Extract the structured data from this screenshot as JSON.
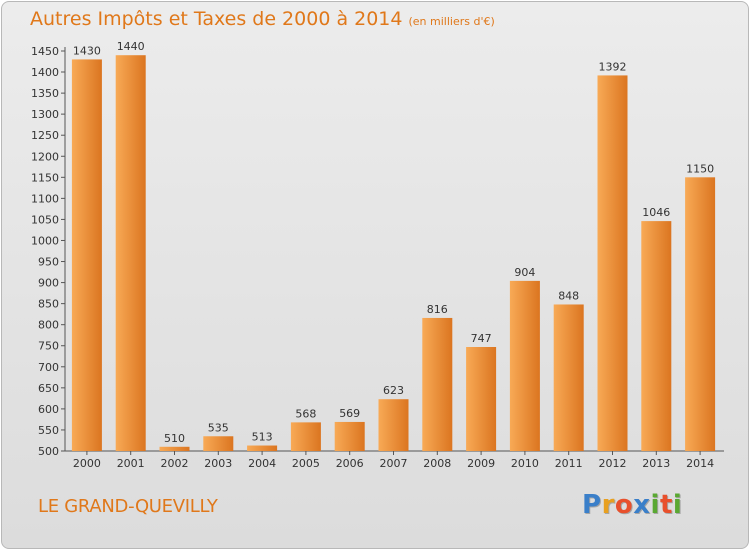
{
  "title": "Autres Impôts et Taxes de 2000 à 2014",
  "subtitle": "(en milliers d'€)",
  "commune": "LE GRAND-QUEVILLY",
  "logo": {
    "text": "Proxiti",
    "letters": [
      "P",
      "r",
      "o",
      "x",
      "i",
      "t",
      "i"
    ],
    "letter_colors": [
      "#3a7fc9",
      "#e8a020",
      "#e8502c",
      "#3a7fc9",
      "#5aa832",
      "#e8502c",
      "#5aa832"
    ]
  },
  "colors": {
    "accent": "#e0781a",
    "bar_light": "#f6a24c",
    "bar_dark": "#dd7a22"
  },
  "chart_data": {
    "type": "bar",
    "title": "Autres Impôts et Taxes de 2000 à 2014",
    "subtitle": "(en milliers d'€)",
    "categories": [
      "2000",
      "2001",
      "2002",
      "2003",
      "2004",
      "2005",
      "2006",
      "2007",
      "2008",
      "2009",
      "2010",
      "2011",
      "2012",
      "2013",
      "2014"
    ],
    "values": [
      1430,
      1440,
      510,
      535,
      513,
      568,
      569,
      623,
      816,
      747,
      904,
      848,
      1392,
      1046,
      1150
    ],
    "ylim": [
      500,
      1450
    ],
    "yticks": [
      500,
      550,
      600,
      650,
      700,
      750,
      800,
      850,
      900,
      950,
      1000,
      1050,
      1100,
      1150,
      1200,
      1250,
      1300,
      1350,
      1400,
      1450
    ],
    "grid": false,
    "xlabel": "",
    "ylabel": ""
  }
}
